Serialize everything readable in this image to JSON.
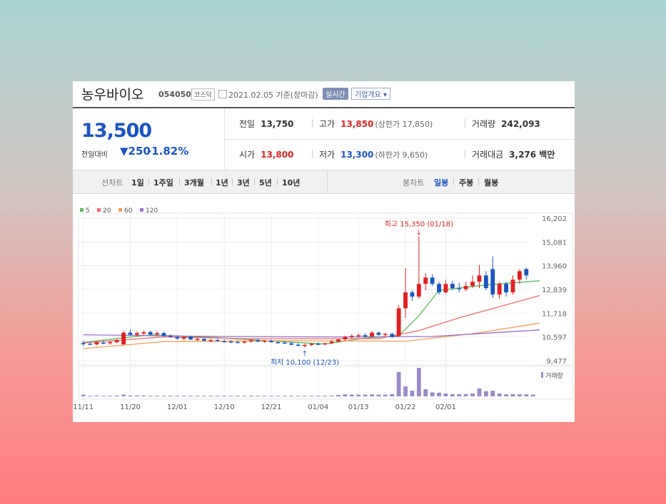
{
  "stock": {
    "name": "농우바이오",
    "code": "054050",
    "market": "코스닥",
    "date": "2021.02.05 기준(장마감)",
    "realtime": "실시간",
    "company_info": "기업개요"
  },
  "price": {
    "current": "13,500",
    "vs_label": "전일대비",
    "change": "▼250",
    "rate": "-1.82%"
  },
  "summary": {
    "prev_label": "전일",
    "prev": "13,750",
    "high_label": "고가",
    "high": "13,850",
    "upper_limit": "(상한가 17,850)",
    "volume_label": "거래량",
    "volume": "242,093",
    "open_label": "시가",
    "open": "13,800",
    "low_label": "저가",
    "low": "13,300",
    "lower_limit": "(하한가 9,650)",
    "amount_label": "거래대금",
    "amount": "3,276 백만"
  },
  "tabs": {
    "line_label": "선차트",
    "periods": [
      "1일",
      "1주일",
      "3개월",
      "1년",
      "3년",
      "5년",
      "10년"
    ],
    "candle_label": "봉차트",
    "candle_periods": [
      "일봉",
      "주봉",
      "월봉"
    ]
  },
  "colors": {
    "rise": "#e02020",
    "fall": "#1b55c2",
    "ma5": "#5cb85c",
    "ma20": "#ef6b6b",
    "ma60": "#f0a050",
    "ma120": "#9b6fcf",
    "volume": "#9b8ac9"
  },
  "chart_data": {
    "type": "candlestick",
    "legend": [
      {
        "name": "5",
        "color": "#5cb85c"
      },
      {
        "name": "20",
        "color": "#ef6b6b"
      },
      {
        "name": "60",
        "color": "#f0a050"
      },
      {
        "name": "120",
        "color": "#9b6fcf"
      }
    ],
    "y_ticks": [
      "16,202",
      "15,081",
      "13,960",
      "12,839",
      "11,718",
      "10,597",
      "9,477"
    ],
    "ylim": [
      9477,
      16202
    ],
    "x_ticks": [
      "11/11",
      "11/20",
      "12/01",
      "12/10",
      "12/21",
      "01/04",
      "01/13",
      "01/22",
      "02/01"
    ],
    "annotations": {
      "high": "최고 15,350 (01/18)",
      "low": "최저 10,100 (12/23)"
    },
    "volume_label": "거래량",
    "candles": [
      {
        "o": 10310,
        "h": 10420,
        "l": 10180,
        "c": 10280
      },
      {
        "o": 10280,
        "h": 10360,
        "l": 10210,
        "c": 10250
      },
      {
        "o": 10250,
        "h": 10400,
        "l": 10200,
        "c": 10350
      },
      {
        "o": 10330,
        "h": 10430,
        "l": 10250,
        "c": 10310
      },
      {
        "o": 10300,
        "h": 10420,
        "l": 10230,
        "c": 10360
      },
      {
        "o": 10350,
        "h": 10500,
        "l": 10300,
        "c": 10450
      },
      {
        "o": 10250,
        "h": 10880,
        "l": 10200,
        "c": 10800
      },
      {
        "o": 10800,
        "h": 10950,
        "l": 10650,
        "c": 10700
      },
      {
        "o": 10700,
        "h": 10850,
        "l": 10620,
        "c": 10780
      },
      {
        "o": 10760,
        "h": 10900,
        "l": 10680,
        "c": 10820
      },
      {
        "o": 10830,
        "h": 10900,
        "l": 10650,
        "c": 10720
      },
      {
        "o": 10720,
        "h": 10850,
        "l": 10620,
        "c": 10780
      },
      {
        "o": 10780,
        "h": 10830,
        "l": 10600,
        "c": 10650
      },
      {
        "o": 10650,
        "h": 10720,
        "l": 10560,
        "c": 10600
      },
      {
        "o": 10600,
        "h": 10680,
        "l": 10480,
        "c": 10520
      },
      {
        "o": 10520,
        "h": 10650,
        "l": 10450,
        "c": 10600
      },
      {
        "o": 10600,
        "h": 10650,
        "l": 10450,
        "c": 10480
      },
      {
        "o": 10480,
        "h": 10560,
        "l": 10420,
        "c": 10500
      },
      {
        "o": 10500,
        "h": 10560,
        "l": 10400,
        "c": 10420
      },
      {
        "o": 10420,
        "h": 10500,
        "l": 10350,
        "c": 10450
      },
      {
        "o": 10450,
        "h": 10520,
        "l": 10380,
        "c": 10400
      },
      {
        "o": 10400,
        "h": 10480,
        "l": 10330,
        "c": 10380
      },
      {
        "o": 10380,
        "h": 10450,
        "l": 10320,
        "c": 10360
      },
      {
        "o": 10360,
        "h": 10440,
        "l": 10300,
        "c": 10340
      },
      {
        "o": 10340,
        "h": 10420,
        "l": 10280,
        "c": 10380
      },
      {
        "o": 10380,
        "h": 10500,
        "l": 10320,
        "c": 10440
      },
      {
        "o": 10440,
        "h": 10520,
        "l": 10350,
        "c": 10380
      },
      {
        "o": 10380,
        "h": 10460,
        "l": 10310,
        "c": 10420
      },
      {
        "o": 10420,
        "h": 10480,
        "l": 10330,
        "c": 10350
      },
      {
        "o": 10350,
        "h": 10420,
        "l": 10280,
        "c": 10330
      },
      {
        "o": 10330,
        "h": 10400,
        "l": 10260,
        "c": 10300
      },
      {
        "o": 10300,
        "h": 10380,
        "l": 10200,
        "c": 10230
      },
      {
        "o": 10230,
        "h": 10300,
        "l": 10150,
        "c": 10200
      },
      {
        "o": 10200,
        "h": 10280,
        "l": 10100,
        "c": 10220
      },
      {
        "o": 10220,
        "h": 10320,
        "l": 10170,
        "c": 10280
      },
      {
        "o": 10280,
        "h": 10340,
        "l": 10220,
        "c": 10250
      },
      {
        "o": 10250,
        "h": 10330,
        "l": 10200,
        "c": 10300
      },
      {
        "o": 10300,
        "h": 10450,
        "l": 10260,
        "c": 10380
      },
      {
        "o": 10380,
        "h": 10520,
        "l": 10340,
        "c": 10480
      },
      {
        "o": 10480,
        "h": 10650,
        "l": 10420,
        "c": 10600
      },
      {
        "o": 10600,
        "h": 10720,
        "l": 10520,
        "c": 10650
      },
      {
        "o": 10650,
        "h": 10760,
        "l": 10560,
        "c": 10680
      },
      {
        "o": 10680,
        "h": 10780,
        "l": 10580,
        "c": 10620
      },
      {
        "o": 10620,
        "h": 10880,
        "l": 10580,
        "c": 10800
      },
      {
        "o": 10800,
        "h": 10850,
        "l": 10650,
        "c": 10700
      },
      {
        "o": 10700,
        "h": 10800,
        "l": 10620,
        "c": 10740
      },
      {
        "o": 10740,
        "h": 10800,
        "l": 10560,
        "c": 10600
      },
      {
        "o": 10650,
        "h": 12100,
        "l": 10600,
        "c": 11950
      },
      {
        "o": 11950,
        "h": 13850,
        "l": 11500,
        "c": 12700
      },
      {
        "o": 12700,
        "h": 12800,
        "l": 12300,
        "c": 12500
      },
      {
        "o": 12500,
        "h": 15350,
        "l": 12400,
        "c": 13100
      },
      {
        "o": 13100,
        "h": 13600,
        "l": 12800,
        "c": 13400
      },
      {
        "o": 13400,
        "h": 13550,
        "l": 13000,
        "c": 13100
      },
      {
        "o": 13100,
        "h": 13200,
        "l": 12600,
        "c": 12700
      },
      {
        "o": 12700,
        "h": 13300,
        "l": 12650,
        "c": 13100
      },
      {
        "o": 13100,
        "h": 13250,
        "l": 12800,
        "c": 12900
      },
      {
        "o": 12900,
        "h": 13150,
        "l": 12700,
        "c": 12850
      },
      {
        "o": 12850,
        "h": 13200,
        "l": 12750,
        "c": 13000
      },
      {
        "o": 13000,
        "h": 13500,
        "l": 12900,
        "c": 13200
      },
      {
        "o": 13200,
        "h": 14000,
        "l": 12900,
        "c": 13500
      },
      {
        "o": 13500,
        "h": 13700,
        "l": 12800,
        "c": 12900
      },
      {
        "o": 13800,
        "h": 14400,
        "l": 12450,
        "c": 12600
      },
      {
        "o": 12600,
        "h": 13200,
        "l": 12400,
        "c": 13100
      },
      {
        "o": 13100,
        "h": 13200,
        "l": 12500,
        "c": 12700
      },
      {
        "o": 12700,
        "h": 13500,
        "l": 12600,
        "c": 13300
      },
      {
        "o": 13300,
        "h": 13800,
        "l": 13100,
        "c": 13700
      },
      {
        "o": 13800,
        "h": 13850,
        "l": 13300,
        "c": 13500
      }
    ],
    "volume": [
      0.06,
      0.02,
      0.03,
      0.02,
      0.02,
      0.03,
      0.06,
      0.03,
      0.03,
      0.03,
      0.02,
      0.02,
      0.02,
      0.02,
      0.02,
      0.02,
      0.02,
      0.02,
      0.02,
      0.02,
      0.02,
      0.02,
      0.02,
      0.02,
      0.02,
      0.02,
      0.02,
      0.02,
      0.02,
      0.02,
      0.02,
      0.02,
      0.02,
      0.02,
      0.02,
      0.02,
      0.02,
      0.03,
      0.05,
      0.07,
      0.06,
      0.06,
      0.06,
      0.07,
      0.06,
      0.06,
      0.08,
      0.85,
      0.35,
      0.2,
      1.0,
      0.25,
      0.14,
      0.13,
      0.1,
      0.08,
      0.08,
      0.08,
      0.1,
      0.28,
      0.18,
      0.2,
      0.1,
      0.07,
      0.08,
      0.07,
      0.07,
      0.06
    ],
    "ma": {
      "5": {
        "points": [
          [
            0,
            10340
          ],
          [
            10,
            10700
          ],
          [
            20,
            10560
          ],
          [
            36,
            10260
          ],
          [
            42,
            10550
          ],
          [
            47,
            10650
          ],
          [
            50,
            11600
          ],
          [
            53,
            12800
          ],
          [
            60,
            13050
          ],
          [
            68,
            13250
          ]
        ]
      },
      "20": {
        "points": [
          [
            0,
            10320
          ],
          [
            12,
            10600
          ],
          [
            24,
            10520
          ],
          [
            44,
            10520
          ],
          [
            50,
            10900
          ],
          [
            56,
            11500
          ],
          [
            68,
            12550
          ]
        ]
      },
      "60": {
        "points": [
          [
            0,
            10050
          ],
          [
            12,
            10380
          ],
          [
            30,
            10420
          ],
          [
            48,
            10400
          ],
          [
            58,
            10750
          ],
          [
            68,
            11250
          ]
        ]
      },
      "120": {
        "points": [
          [
            0,
            10700
          ],
          [
            20,
            10620
          ],
          [
            40,
            10600
          ],
          [
            52,
            10620
          ],
          [
            68,
            10930
          ]
        ]
      }
    }
  }
}
